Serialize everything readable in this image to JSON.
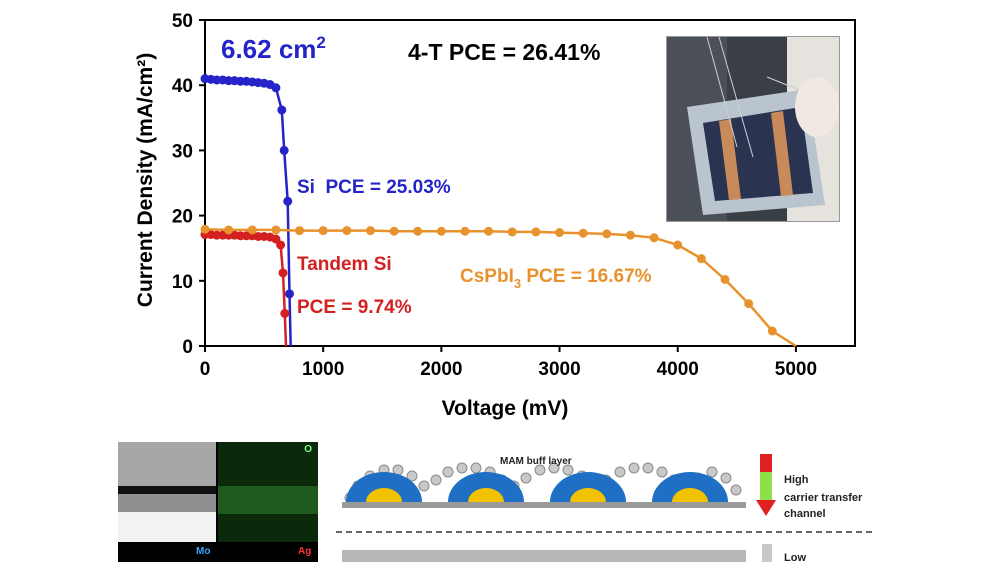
{
  "chart_data": {
    "type": "line",
    "title": "",
    "xlabel": "Voltage (mV)",
    "ylabel": "Current Density (mA/cm²)",
    "xlim": [
      0,
      5500
    ],
    "ylim": [
      0,
      50
    ],
    "xticks": [
      0,
      1000,
      2000,
      3000,
      4000,
      5000
    ],
    "yticks": [
      0,
      10,
      20,
      30,
      40,
      50
    ],
    "grid": false,
    "series": [
      {
        "name": "Si",
        "color": "#2424c8",
        "x": [
          0,
          50,
          100,
          150,
          200,
          250,
          300,
          350,
          400,
          450,
          500,
          550,
          600,
          650,
          670,
          700,
          715,
          725
        ],
        "y": [
          41,
          40.9,
          40.8,
          40.8,
          40.7,
          40.7,
          40.6,
          40.6,
          40.5,
          40.4,
          40.3,
          40.1,
          39.6,
          36.2,
          30,
          22.2,
          8,
          0
        ]
      },
      {
        "name": "Tandem Si",
        "color": "#d42020",
        "x": [
          0,
          50,
          100,
          150,
          200,
          250,
          300,
          350,
          400,
          450,
          500,
          550,
          600,
          640,
          660,
          675,
          685
        ],
        "y": [
          17.1,
          17.1,
          17.0,
          17.0,
          17.0,
          17.0,
          16.9,
          16.9,
          16.9,
          16.8,
          16.8,
          16.7,
          16.4,
          15.5,
          11.2,
          5,
          0
        ]
      },
      {
        "name": "CsPbI3",
        "color": "#e8922e",
        "x": [
          0,
          200,
          400,
          600,
          800,
          1000,
          1200,
          1400,
          1600,
          1800,
          2000,
          2200,
          2400,
          2600,
          2800,
          3000,
          3200,
          3400,
          3600,
          3800,
          4000,
          4200,
          4400,
          4600,
          4800,
          5000
        ],
        "y": [
          17.9,
          17.8,
          17.8,
          17.8,
          17.7,
          17.7,
          17.7,
          17.7,
          17.6,
          17.6,
          17.6,
          17.6,
          17.6,
          17.5,
          17.5,
          17.4,
          17.3,
          17.2,
          17.0,
          16.6,
          15.5,
          13.4,
          10.2,
          6.5,
          2.3,
          0
        ]
      }
    ],
    "annotations": {
      "area": "6.62 cm",
      "area_sup": "2",
      "four_t": "4-T PCE = 26.41%",
      "si": "Si  PCE = 25.03%",
      "tandem_line1": "Tandem Si",
      "tandem_line2": "PCE = 9.74%",
      "cs_prefix": "CsPbI",
      "cs_sub": "3",
      "cs_suffix": " PCE = 16.67%"
    }
  },
  "colors": {
    "si": "#2424c8",
    "tandem": "#d42020",
    "cspbi3": "#e8922e",
    "axis": "#000000"
  },
  "inset_sem": {
    "label_mo": "Mo",
    "label_ag": "Ag",
    "label_o": "O"
  },
  "schematic": {
    "buffer_label": "MAM buff layer",
    "high_label_1": "High",
    "high_label_2": "carrier transfer",
    "high_label_3": "channel",
    "low_label": "Low"
  }
}
